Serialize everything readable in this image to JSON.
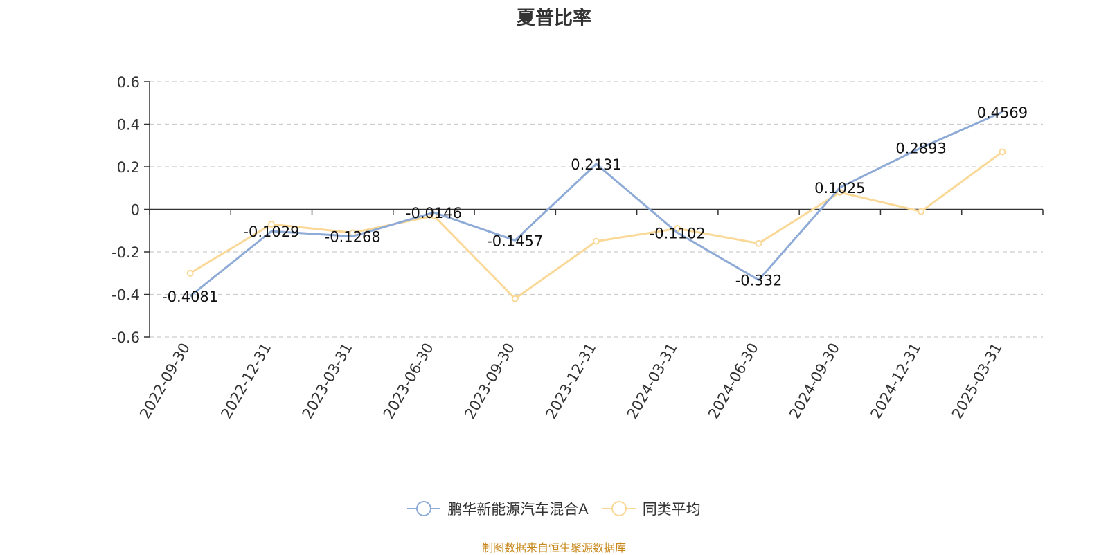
{
  "chart_data": {
    "type": "line",
    "title": "夏普比率",
    "categories": [
      "2022-09-30",
      "2022-12-31",
      "2023-03-31",
      "2023-06-30",
      "2023-09-30",
      "2023-12-31",
      "2024-03-31",
      "2024-06-30",
      "2024-09-30",
      "2024-12-31",
      "2025-03-31"
    ],
    "series": [
      {
        "name": "鹏华新能源汽车混合A",
        "color": "#8eaad6",
        "values": [
          -0.4081,
          -0.1029,
          -0.1268,
          -0.0146,
          -0.1457,
          0.2131,
          -0.1102,
          -0.332,
          0.1025,
          0.2893,
          0.4569
        ],
        "labels": [
          "-0.4081",
          "-0.1029",
          "-0.1268",
          "-0.0146",
          "-0.1457",
          "0.2131",
          "-0.1102",
          "-0.332",
          "0.1025",
          "0.2893",
          "0.4569"
        ]
      },
      {
        "name": "同类平均",
        "color": "#fad998",
        "values": [
          -0.3,
          -0.07,
          -0.11,
          -0.03,
          -0.42,
          -0.15,
          -0.09,
          -0.16,
          0.08,
          -0.01,
          0.27
        ]
      }
    ],
    "ylim": [
      -0.6,
      0.6
    ],
    "yticks": [
      "0.6",
      "0.4",
      "0.2",
      "0",
      "-0.2",
      "-0.4",
      "-0.6"
    ],
    "grid": true,
    "legend_position": "bottom"
  },
  "source_note": "制图数据来自恒生聚源数据库"
}
